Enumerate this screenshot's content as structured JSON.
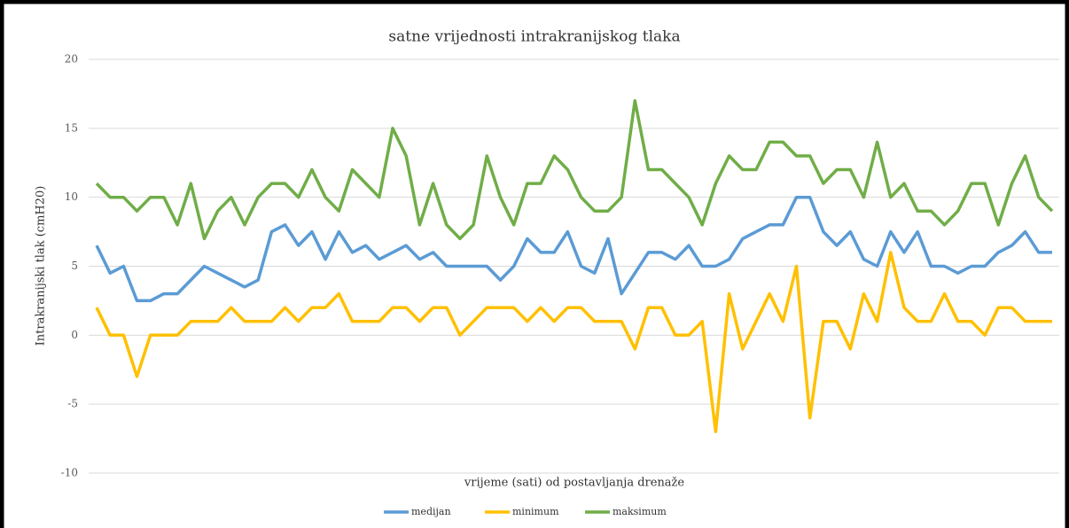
{
  "chart_data": {
    "type": "line",
    "title": "satne vrijednosti intrakranijskog tlaka",
    "x_label": "vrijeme (sati) od postavljanja drenaže",
    "y_label": "Intrakranijski tlak (cmH20)",
    "categories": [
      null,
      null,
      null,
      null,
      null,
      null,
      null,
      null,
      null,
      null,
      null,
      null,
      null,
      null,
      null,
      null,
      null,
      null,
      null,
      null,
      null,
      null,
      null,
      null,
      null,
      null,
      null,
      null,
      null,
      null,
      null,
      null,
      null,
      null,
      null,
      null,
      null,
      null,
      null,
      null,
      null,
      null,
      null,
      null,
      null,
      null,
      null,
      null,
      null,
      null,
      null,
      null,
      null,
      null,
      null,
      null,
      null,
      null,
      null,
      null,
      null,
      null,
      null,
      null,
      null,
      null,
      null,
      null,
      null,
      null,
      null,
      null
    ],
    "ylim": [
      -10,
      20
    ],
    "yticks": [
      -10,
      -5,
      0,
      5,
      10,
      15,
      20
    ],
    "grid": true,
    "legend": "bottom",
    "series": [
      {
        "name": "medijan",
        "color": "#5b9bd5",
        "values": [
          6.5,
          4.5,
          5,
          2.5,
          2.5,
          3,
          3,
          4,
          5,
          4.5,
          4,
          3.5,
          4,
          7.5,
          8,
          6.5,
          7.5,
          5.5,
          7.5,
          6,
          6.5,
          5.5,
          6,
          6.5,
          5.5,
          6,
          5,
          5,
          5,
          5,
          4,
          5,
          7,
          6,
          6,
          7.5,
          5,
          4.5,
          7,
          3,
          4.5,
          6,
          6,
          5.5,
          6.5,
          5,
          5,
          5.5,
          7,
          7.5,
          8,
          8,
          10,
          10,
          7.5,
          6.5,
          7.5,
          5.5,
          5,
          7.5,
          6,
          7.5,
          5,
          5,
          4.5,
          5,
          5,
          6,
          6.5,
          7.5,
          6,
          6
        ]
      },
      {
        "name": "minimum",
        "color": "#ffc000",
        "values": [
          2,
          0,
          0,
          -3,
          0,
          0,
          0,
          1,
          1,
          1,
          2,
          1,
          1,
          1,
          2,
          1,
          2,
          2,
          3,
          1,
          1,
          1,
          2,
          2,
          1,
          2,
          2,
          0,
          1,
          2,
          2,
          2,
          1,
          2,
          1,
          2,
          2,
          1,
          1,
          1,
          -1,
          2,
          2,
          0,
          0,
          1,
          -7,
          3,
          -1,
          1,
          3,
          1,
          5,
          -6,
          1,
          1,
          -1,
          3,
          1,
          6,
          2,
          1,
          1,
          3,
          1,
          1,
          0,
          2,
          2,
          1,
          1,
          1
        ]
      },
      {
        "name": "maksimum",
        "color": "#70ad47",
        "values": [
          11,
          10,
          10,
          9,
          10,
          10,
          8,
          11,
          7,
          9,
          10,
          8,
          10,
          11,
          11,
          10,
          12,
          10,
          9,
          12,
          11,
          10,
          15,
          13,
          8,
          11,
          8,
          7,
          8,
          13,
          10,
          8,
          11,
          11,
          13,
          12,
          10,
          9,
          9,
          10,
          17,
          12,
          12,
          11,
          10,
          8,
          11,
          13,
          12,
          12,
          14,
          14,
          13,
          13,
          11,
          12,
          12,
          10,
          14,
          10,
          11,
          9,
          9,
          8,
          9,
          11,
          11,
          8,
          11,
          13,
          10,
          9
        ]
      }
    ]
  }
}
